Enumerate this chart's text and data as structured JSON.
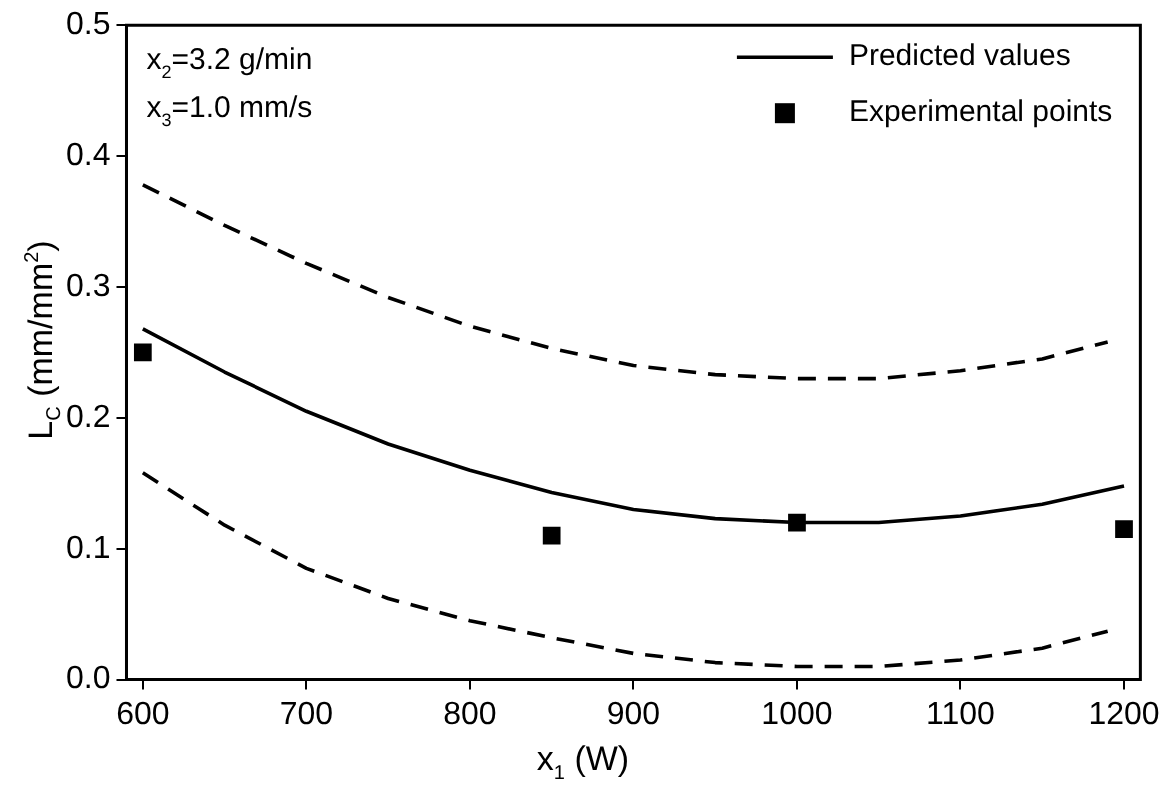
{
  "chart_data": {
    "type": "line",
    "xlabel": "x$_{1}$ (W)",
    "ylabel": "L$_{C}$ (mm/mm$^{2}$)",
    "annotations": [
      "x$_{2}$=3.2 g/min",
      "x$_{3}$=1.0 mm/s"
    ],
    "xlim": [
      590,
      1210
    ],
    "xticks": [
      600,
      700,
      800,
      900,
      1000,
      1100,
      1200
    ],
    "ylim": [
      0,
      0.5
    ],
    "yticks": [
      {
        "value": 0,
        "label": "0.0"
      },
      0.1,
      0.2,
      0.3,
      0.4,
      0.5
    ],
    "grid": false,
    "legend": "top right",
    "series": [
      {
        "name": "Predicted values",
        "type": "line",
        "color": "#000000",
        "line_style": "solid",
        "marker": "none",
        "x": [
          600,
          650,
          700,
          750,
          800,
          850,
          900,
          950,
          1000,
          1050,
          1100,
          1150,
          1200
        ],
        "values": [
          0.268,
          0.235,
          0.205,
          0.18,
          0.16,
          0.143,
          0.13,
          0.123,
          0.12,
          0.12,
          0.125,
          0.134,
          0.148
        ]
      },
      {
        "type": "line",
        "color": "#000000",
        "line_style": "dashed",
        "marker": "none",
        "x": [
          600,
          650,
          700,
          750,
          800,
          850,
          900,
          950,
          1000,
          1050,
          1100,
          1150,
          1190
        ],
        "values": [
          0.378,
          0.347,
          0.318,
          0.292,
          0.27,
          0.253,
          0.24,
          0.233,
          0.23,
          0.23,
          0.236,
          0.245,
          0.258
        ]
      },
      {
        "type": "line",
        "color": "#000000",
        "line_style": "dashed",
        "marker": "none",
        "x": [
          600,
          650,
          700,
          750,
          800,
          850,
          900,
          950,
          1000,
          1050,
          1100,
          1150,
          1190
        ],
        "values": [
          0.158,
          0.118,
          0.085,
          0.062,
          0.045,
          0.032,
          0.02,
          0.013,
          0.01,
          0.01,
          0.015,
          0.024,
          0.037
        ]
      },
      {
        "name": "Experimental points",
        "type": "scatter",
        "color": "#000000",
        "marker": "square",
        "x": [
          600,
          850,
          1000,
          1200
        ],
        "values": [
          0.25,
          0.11,
          0.12,
          0.115
        ]
      }
    ]
  }
}
